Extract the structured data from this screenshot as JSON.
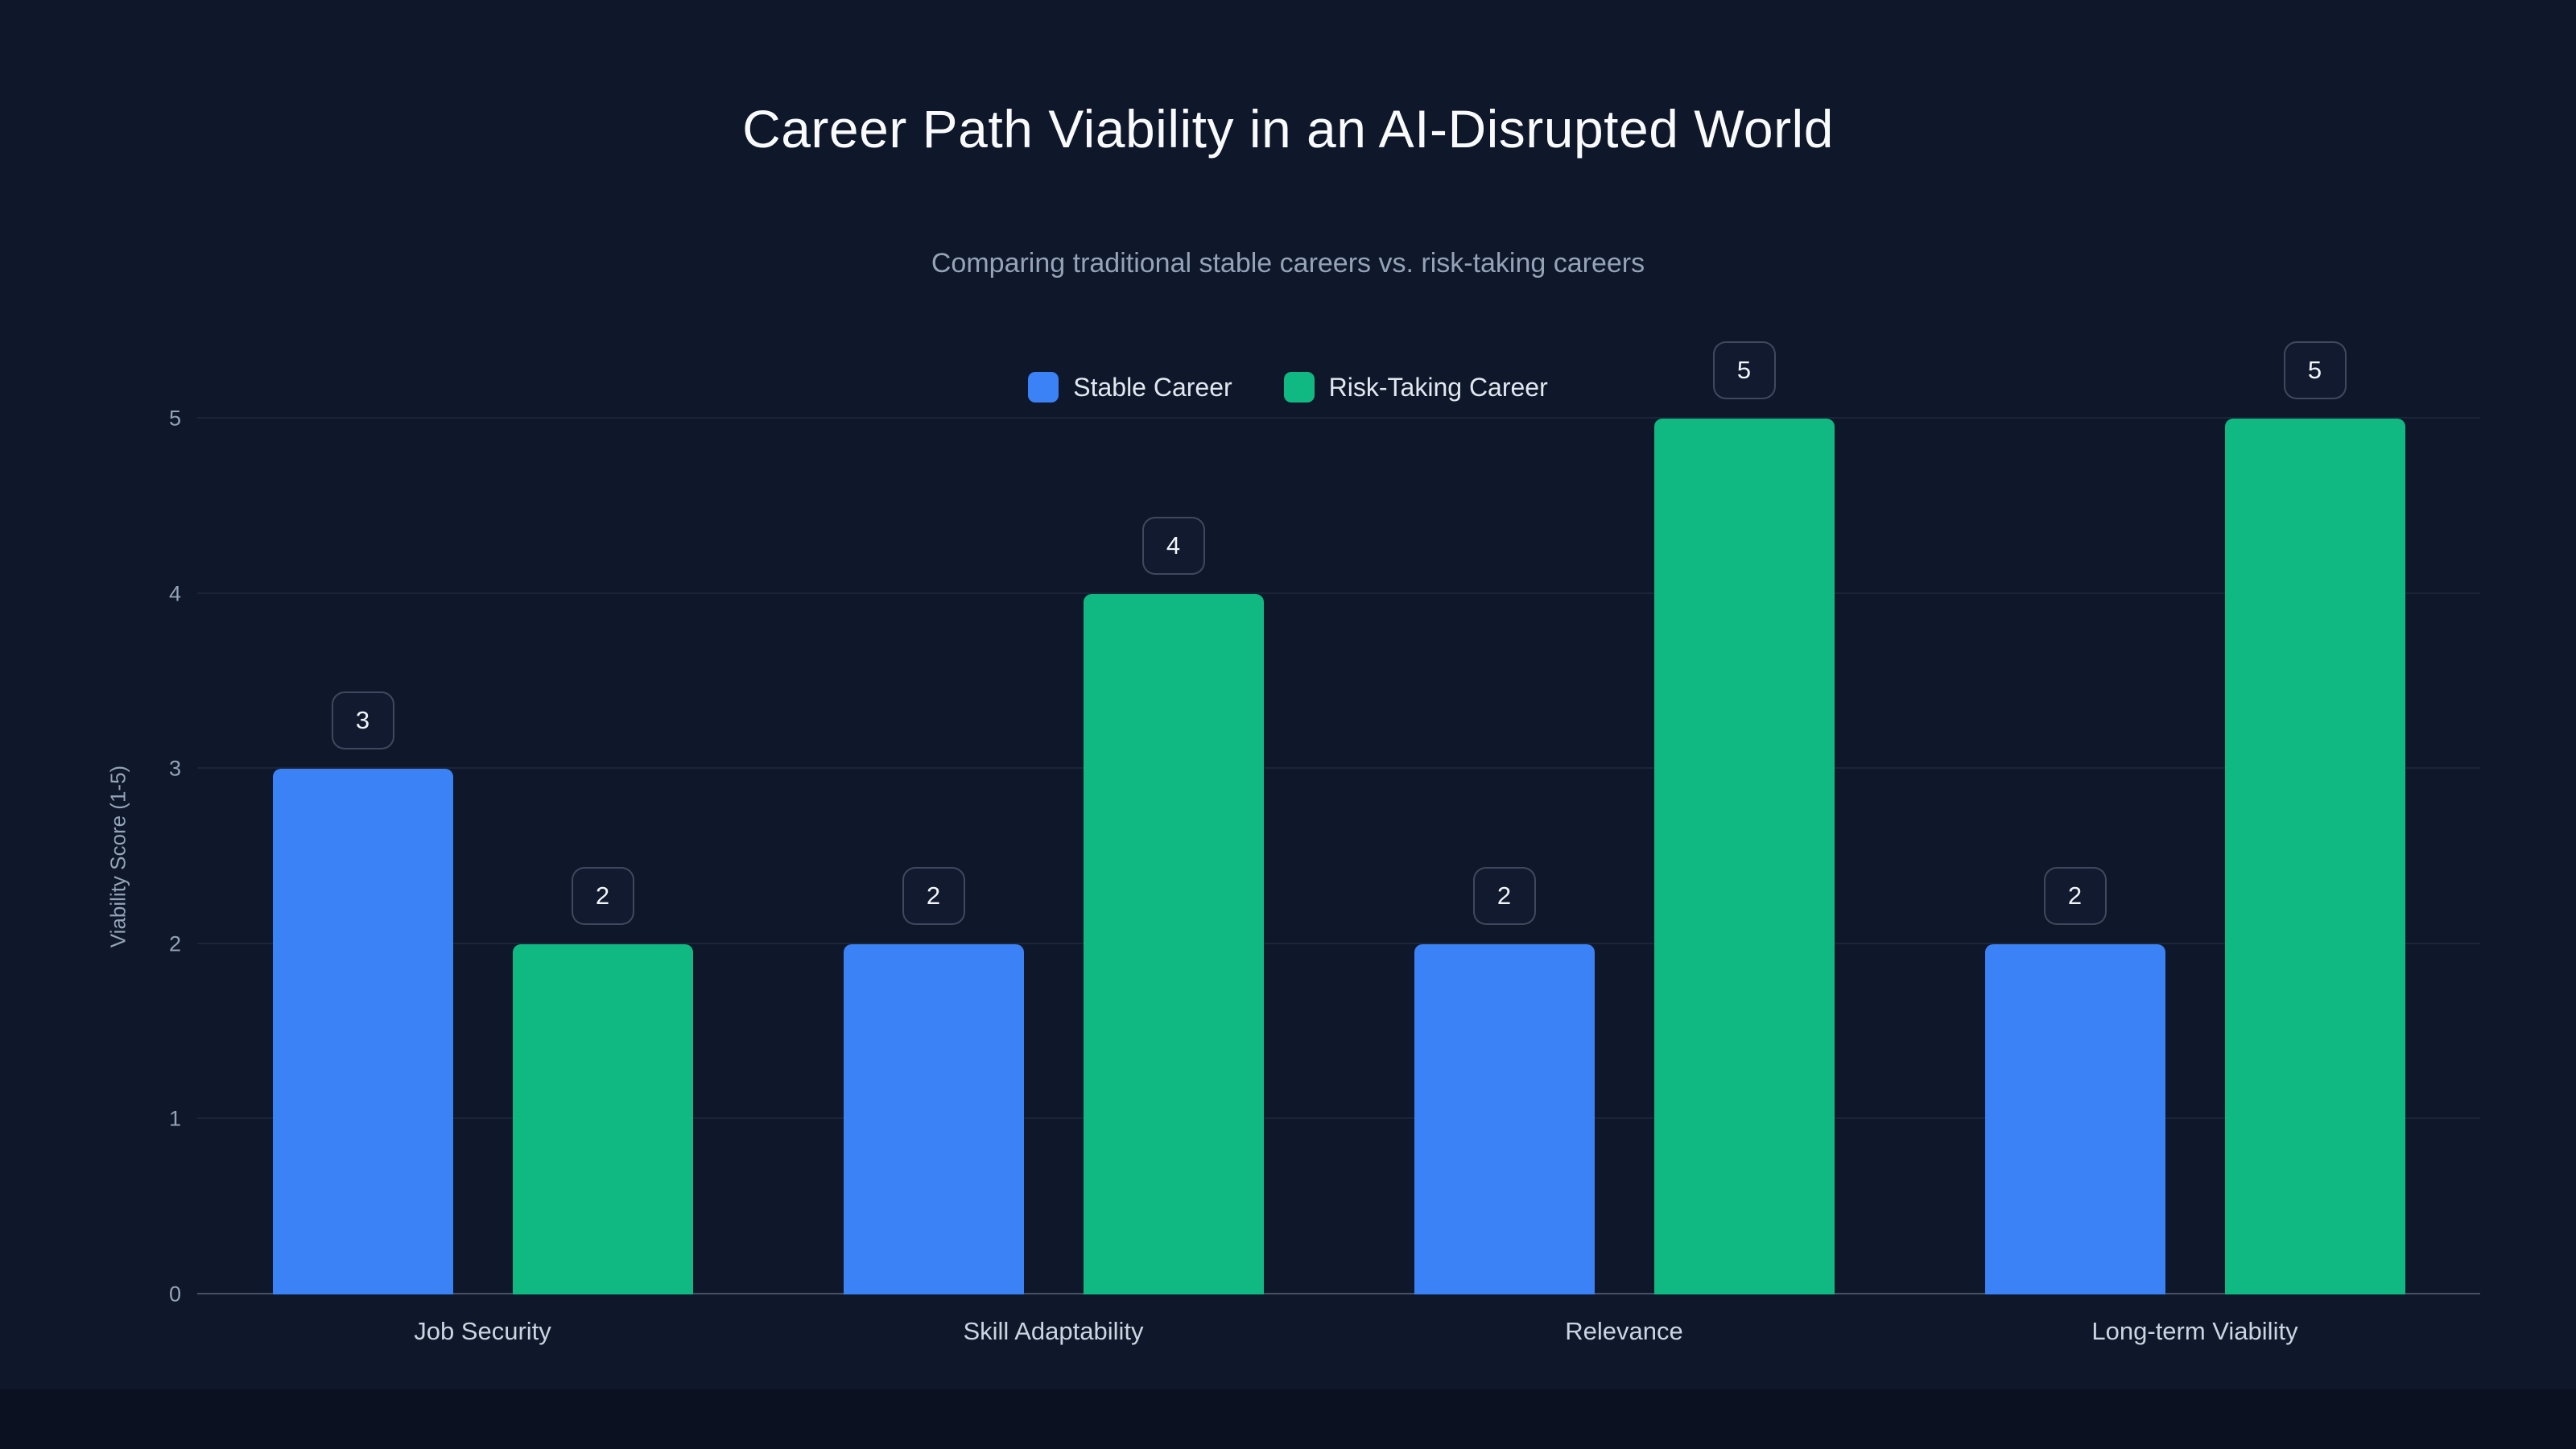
{
  "header": {
    "title": "Career Path Viability in an AI-Disrupted World",
    "subtitle": "Comparing traditional stable careers vs. risk-taking careers"
  },
  "colors": {
    "background": "#0f172a",
    "footer": "#0b1120",
    "stable_series": "#3b82f6",
    "risk_series": "#10b981",
    "grid": "rgba(148,163,184,0.10)",
    "muted_text": "#94a3b8",
    "light_text": "#f8fafc"
  },
  "chart_data": {
    "type": "bar",
    "title": "Career Path Viability in an AI-Disrupted World",
    "subtitle": "Comparing traditional stable careers vs. risk-taking careers",
    "categories": [
      "Job Security",
      "Skill Adaptability",
      "Relevance",
      "Long-term Viability"
    ],
    "series": [
      {
        "name": "Stable Career",
        "color": "#3b82f6",
        "values": [
          3,
          2,
          2,
          2
        ]
      },
      {
        "name": "Risk-Taking Career",
        "color": "#10b981",
        "values": [
          2,
          4,
          5,
          5
        ]
      }
    ],
    "xlabel": "",
    "ylabel": "Viability Score (1-5)",
    "ylim": [
      0,
      5
    ],
    "yticks": [
      0,
      1,
      2,
      3,
      4,
      5
    ],
    "grid": true,
    "legend_position": "top-center",
    "value_labels": true
  }
}
